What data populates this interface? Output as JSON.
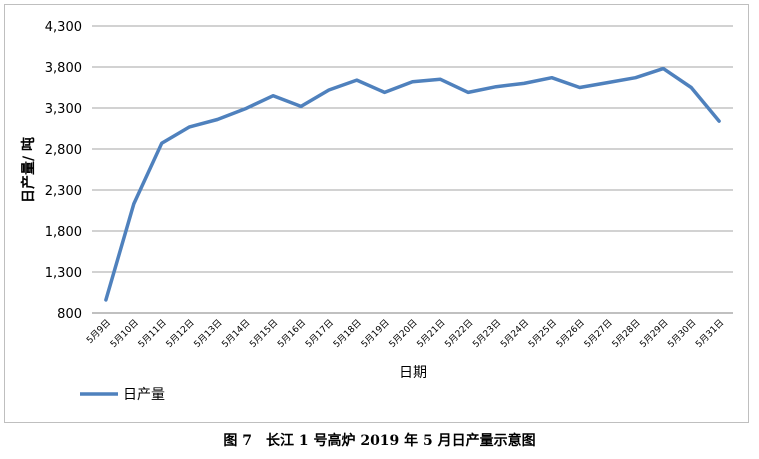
{
  "chart_data": {
    "type": "line",
    "xlabel": "日期",
    "ylabel": "日产量/ 吨",
    "ylim": [
      800,
      4300
    ],
    "yticks": [
      800,
      1300,
      1800,
      2300,
      2800,
      3300,
      3800,
      4300
    ],
    "ytick_labels": [
      "800",
      "1,300",
      "1,800",
      "2,300",
      "2,800",
      "3,300",
      "3,800",
      "4,300"
    ],
    "grid": "horizontal",
    "legend_position": "bottom-left",
    "categories": [
      "5月9日",
      "5月10日",
      "5月11日",
      "5月12日",
      "5月13日",
      "5月14日",
      "5月15日",
      "5月16日",
      "5月17日",
      "5月18日",
      "5月19日",
      "5月20日",
      "5月21日",
      "5月22日",
      "5月23日",
      "5月24日",
      "5月25日",
      "5月26日",
      "5月27日",
      "5月28日",
      "5月29日",
      "5月30日",
      "5月31日"
    ],
    "series": [
      {
        "name": "日产量",
        "color": "#4f81bd",
        "values": [
          960,
          2130,
          2870,
          3070,
          3160,
          3290,
          3450,
          3320,
          3520,
          3640,
          3490,
          3620,
          3650,
          3490,
          3560,
          3600,
          3670,
          3550,
          3610,
          3670,
          3780,
          3550,
          3140
        ]
      }
    ]
  },
  "caption": "图 7　长江 1 号高炉 2019 年 5 月日产量示意图"
}
